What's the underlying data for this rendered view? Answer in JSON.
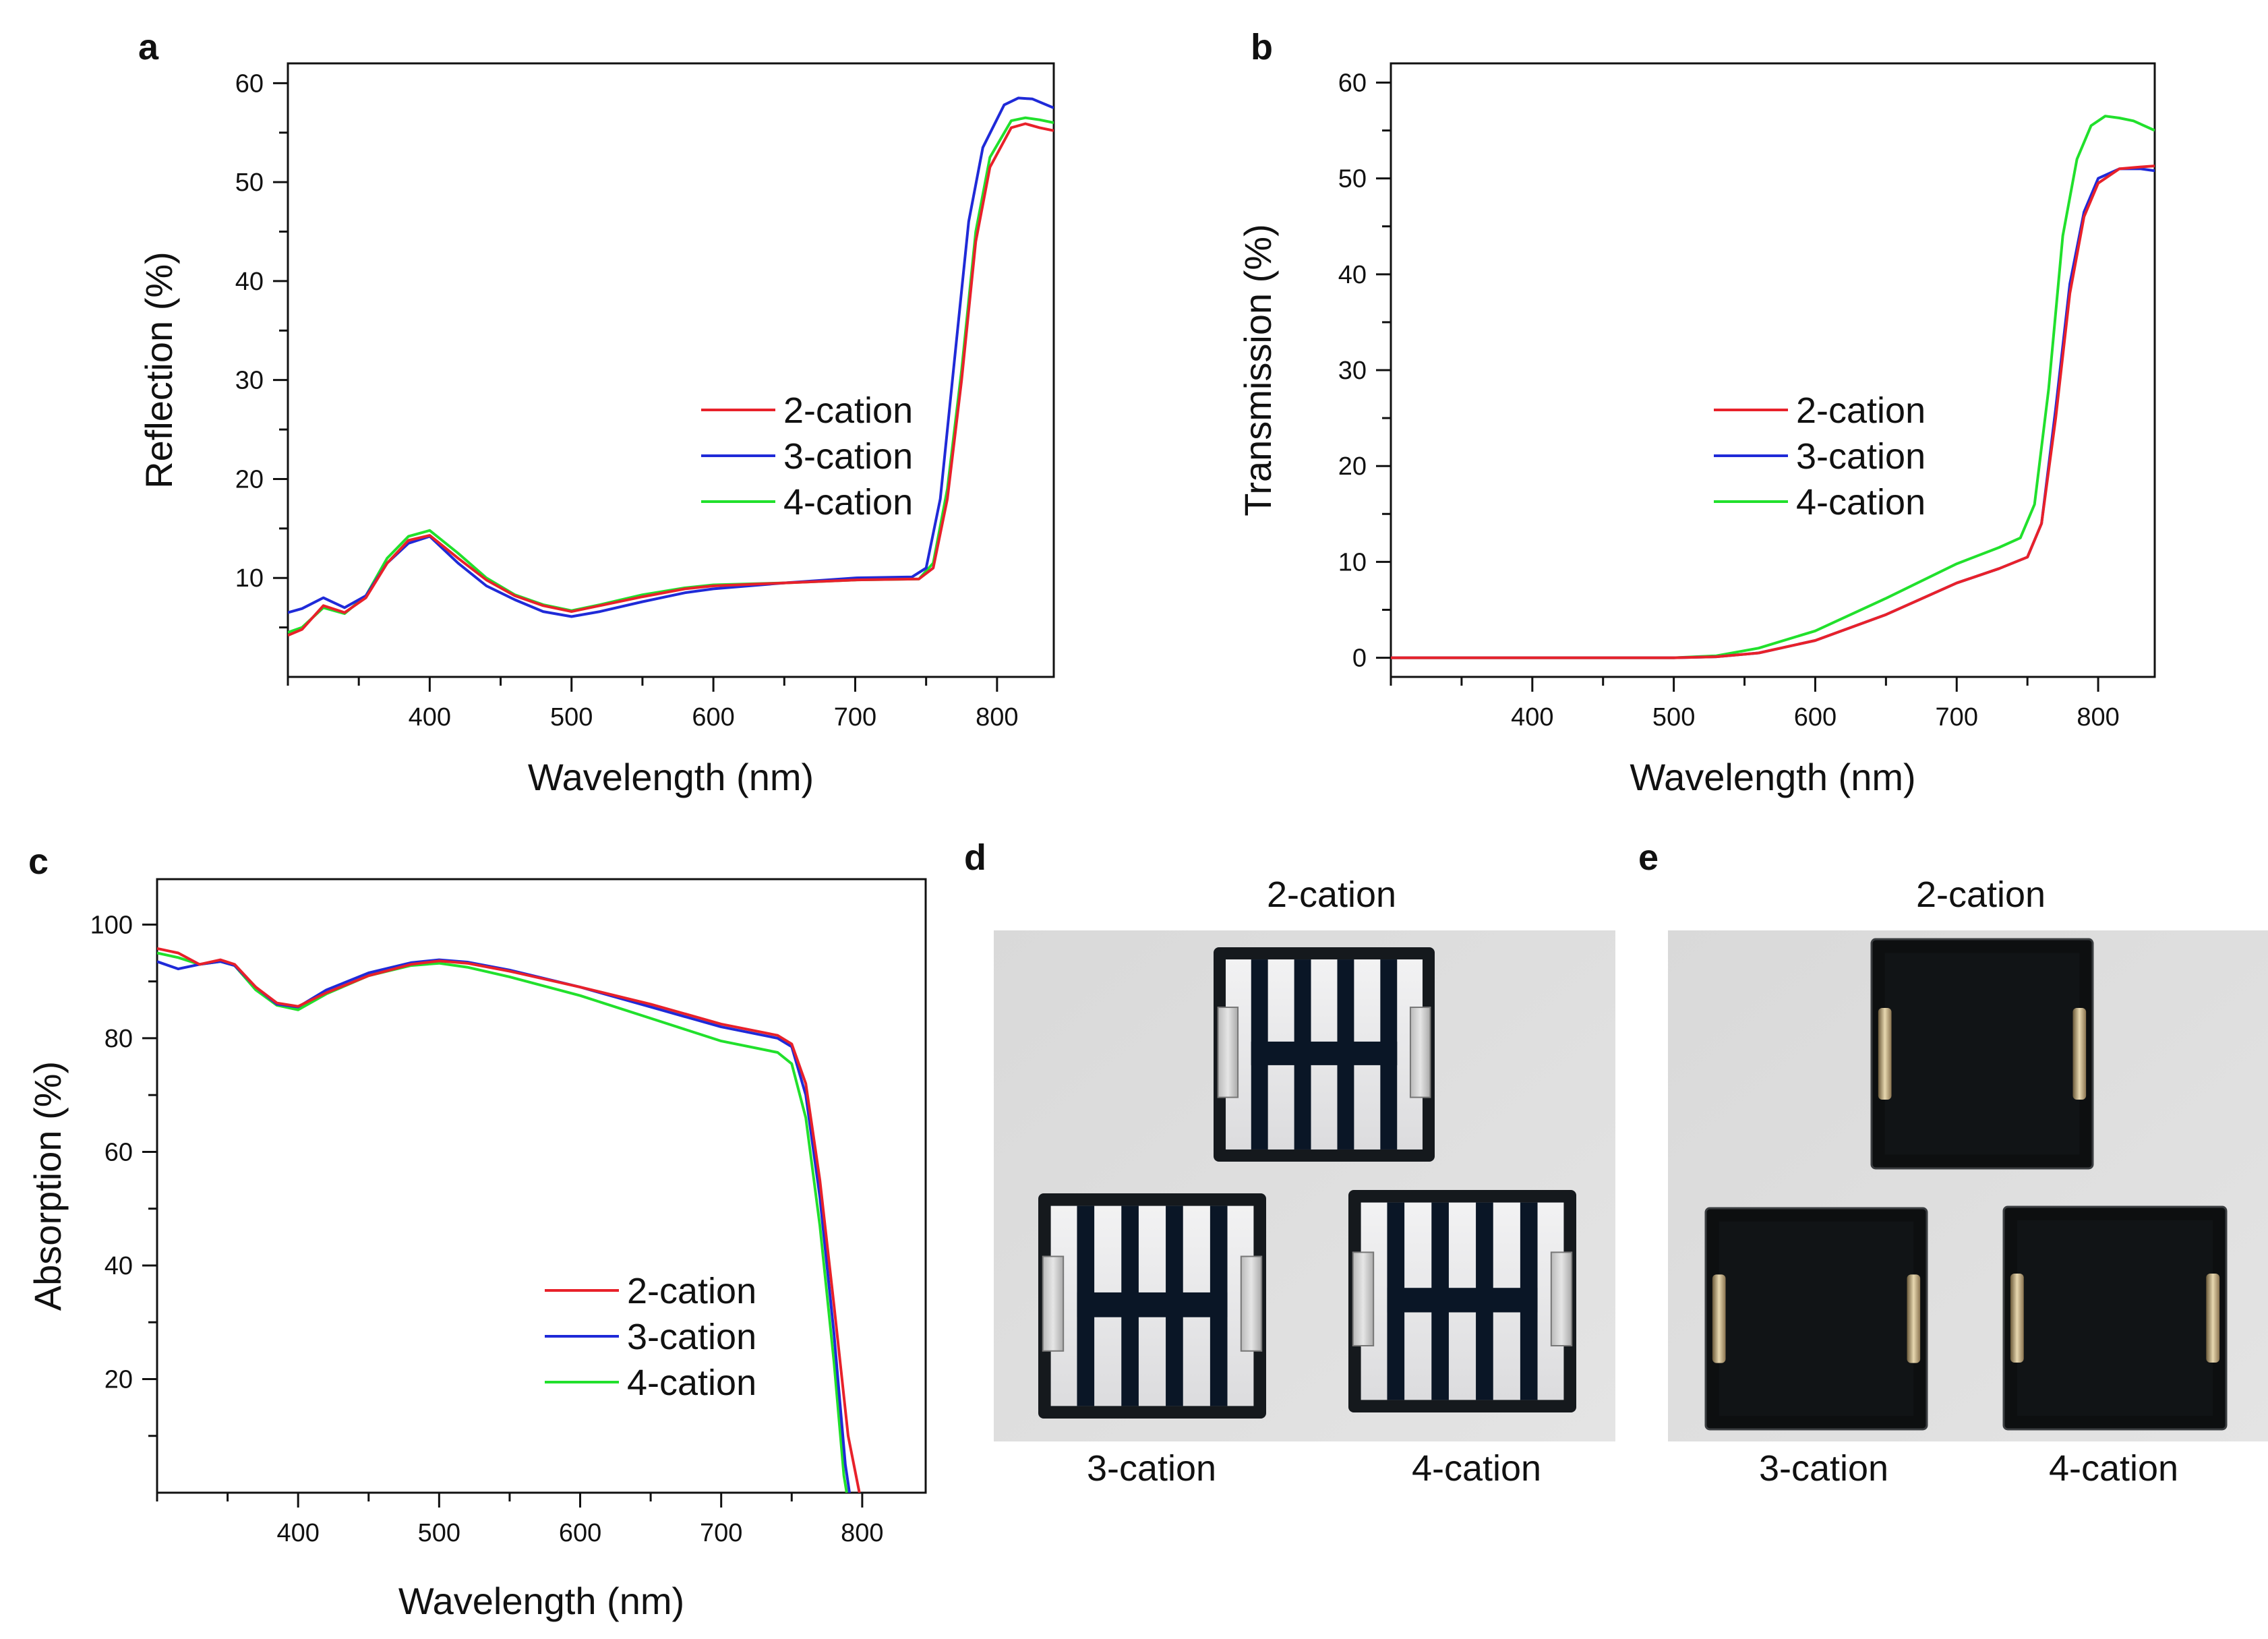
{
  "figure": {
    "colors": {
      "2-cation": "#e8212a",
      "3-cation": "#1f2ad8",
      "4-cation": "#21e02c"
    },
    "photo_bg": "#dcdcdc",
    "glass": "#e9e9ea",
    "active": "#0a1626",
    "dark_device": "#0d0f10"
  },
  "chart_data": [
    {
      "id": "a",
      "type": "line",
      "letter": "a",
      "xlabel": "Wavelength (nm)",
      "ylabel": "Reflection (%)",
      "xlim": [
        300,
        840
      ],
      "ylim": [
        0,
        62
      ],
      "xticks": [
        400,
        500,
        600,
        700,
        800
      ],
      "yticks": [
        10,
        20,
        30,
        40,
        50,
        60
      ],
      "xtick_labels": [
        "400",
        "500",
        "600",
        "700",
        "800"
      ],
      "ytick_labels": [
        "10",
        "20",
        "30",
        "40",
        "50",
        "60"
      ],
      "legend": {
        "position": "center-right",
        "entries": [
          "2-cation",
          "3-cation",
          "4-cation"
        ]
      },
      "series": [
        {
          "name": "2-cation",
          "points": [
            [
              300,
              4.2
            ],
            [
              310,
              4.8
            ],
            [
              325,
              7.2
            ],
            [
              340,
              6.5
            ],
            [
              355,
              8.0
            ],
            [
              370,
              11.5
            ],
            [
              385,
              13.8
            ],
            [
              400,
              14.3
            ],
            [
              420,
              12.0
            ],
            [
              440,
              9.8
            ],
            [
              460,
              8.2
            ],
            [
              480,
              7.2
            ],
            [
              500,
              6.6
            ],
            [
              520,
              7.2
            ],
            [
              550,
              8.1
            ],
            [
              580,
              8.9
            ],
            [
              600,
              9.2
            ],
            [
              650,
              9.5
            ],
            [
              700,
              9.8
            ],
            [
              745,
              9.9
            ],
            [
              755,
              11.0
            ],
            [
              765,
              18.0
            ],
            [
              775,
              30.0
            ],
            [
              785,
              44.0
            ],
            [
              795,
              51.5
            ],
            [
              810,
              55.5
            ],
            [
              820,
              55.9
            ],
            [
              830,
              55.5
            ],
            [
              840,
              55.2
            ]
          ]
        },
        {
          "name": "3-cation",
          "points": [
            [
              300,
              6.5
            ],
            [
              310,
              6.9
            ],
            [
              325,
              8.0
            ],
            [
              340,
              7.0
            ],
            [
              355,
              8.2
            ],
            [
              370,
              11.5
            ],
            [
              385,
              13.5
            ],
            [
              400,
              14.2
            ],
            [
              420,
              11.5
            ],
            [
              440,
              9.2
            ],
            [
              460,
              7.8
            ],
            [
              480,
              6.6
            ],
            [
              500,
              6.1
            ],
            [
              520,
              6.6
            ],
            [
              550,
              7.6
            ],
            [
              580,
              8.5
            ],
            [
              600,
              8.9
            ],
            [
              650,
              9.5
            ],
            [
              700,
              10.0
            ],
            [
              740,
              10.1
            ],
            [
              750,
              11.0
            ],
            [
              760,
              18.0
            ],
            [
              770,
              32.0
            ],
            [
              780,
              46.0
            ],
            [
              790,
              53.5
            ],
            [
              805,
              57.8
            ],
            [
              815,
              58.5
            ],
            [
              825,
              58.4
            ],
            [
              840,
              57.5
            ]
          ]
        },
        {
          "name": "4-cation",
          "points": [
            [
              300,
              4.5
            ],
            [
              310,
              5.0
            ],
            [
              325,
              7.0
            ],
            [
              340,
              6.4
            ],
            [
              355,
              8.2
            ],
            [
              370,
              12.0
            ],
            [
              385,
              14.2
            ],
            [
              400,
              14.8
            ],
            [
              420,
              12.5
            ],
            [
              440,
              10.0
            ],
            [
              460,
              8.3
            ],
            [
              480,
              7.3
            ],
            [
              500,
              6.7
            ],
            [
              520,
              7.3
            ],
            [
              550,
              8.3
            ],
            [
              580,
              9.0
            ],
            [
              600,
              9.3
            ],
            [
              650,
              9.5
            ],
            [
              700,
              9.8
            ],
            [
              745,
              9.9
            ],
            [
              755,
              11.5
            ],
            [
              765,
              19.0
            ],
            [
              775,
              31.0
            ],
            [
              785,
              45.0
            ],
            [
              795,
              52.5
            ],
            [
              810,
              56.2
            ],
            [
              820,
              56.5
            ],
            [
              830,
              56.3
            ],
            [
              840,
              56.0
            ]
          ]
        }
      ]
    },
    {
      "id": "b",
      "type": "line",
      "letter": "b",
      "xlabel": "Wavelength (nm)",
      "ylabel": "Transmission (%)",
      "xlim": [
        300,
        840
      ],
      "ylim": [
        -2,
        62
      ],
      "xticks": [
        400,
        500,
        600,
        700,
        800
      ],
      "yticks": [
        0,
        10,
        20,
        30,
        40,
        50,
        60
      ],
      "xtick_labels": [
        "400",
        "500",
        "600",
        "700",
        "800"
      ],
      "ytick_labels": [
        "0",
        "10",
        "20",
        "30",
        "40",
        "50",
        "60"
      ],
      "legend": {
        "position": "center-right",
        "entries": [
          "2-cation",
          "3-cation",
          "4-cation"
        ]
      },
      "series": [
        {
          "name": "2-cation",
          "points": [
            [
              300,
              0
            ],
            [
              500,
              0
            ],
            [
              530,
              0.1
            ],
            [
              560,
              0.5
            ],
            [
              600,
              1.8
            ],
            [
              650,
              4.5
            ],
            [
              700,
              7.8
            ],
            [
              730,
              9.3
            ],
            [
              750,
              10.5
            ],
            [
              760,
              14.0
            ],
            [
              770,
              25.0
            ],
            [
              780,
              38.0
            ],
            [
              790,
              46.0
            ],
            [
              800,
              49.5
            ],
            [
              815,
              51.0
            ],
            [
              830,
              51.2
            ],
            [
              840,
              51.3
            ]
          ]
        },
        {
          "name": "3-cation",
          "points": [
            [
              300,
              0
            ],
            [
              500,
              0
            ],
            [
              530,
              0.1
            ],
            [
              560,
              0.5
            ],
            [
              600,
              1.8
            ],
            [
              650,
              4.5
            ],
            [
              700,
              7.8
            ],
            [
              730,
              9.3
            ],
            [
              750,
              10.5
            ],
            [
              760,
              14.0
            ],
            [
              770,
              26.0
            ],
            [
              780,
              39.0
            ],
            [
              790,
              46.5
            ],
            [
              800,
              50.0
            ],
            [
              815,
              51.0
            ],
            [
              830,
              51.0
            ],
            [
              840,
              50.8
            ]
          ]
        },
        {
          "name": "4-cation",
          "points": [
            [
              300,
              0
            ],
            [
              500,
              0
            ],
            [
              530,
              0.2
            ],
            [
              560,
              1.0
            ],
            [
              600,
              2.8
            ],
            [
              650,
              6.2
            ],
            [
              700,
              9.8
            ],
            [
              730,
              11.5
            ],
            [
              745,
              12.5
            ],
            [
              755,
              16.0
            ],
            [
              765,
              28.0
            ],
            [
              775,
              44.0
            ],
            [
              785,
              52.0
            ],
            [
              795,
              55.5
            ],
            [
              805,
              56.5
            ],
            [
              815,
              56.3
            ],
            [
              825,
              56.0
            ],
            [
              840,
              55.0
            ]
          ]
        }
      ]
    },
    {
      "id": "c",
      "type": "line",
      "letter": "c",
      "xlabel": "Wavelength (nm)",
      "ylabel": "Absorption (%)",
      "xlim": [
        300,
        845
      ],
      "ylim": [
        0,
        108
      ],
      "xticks": [
        400,
        500,
        600,
        700,
        800
      ],
      "yticks": [
        20,
        40,
        60,
        80,
        100
      ],
      "xtick_labels": [
        "400",
        "500",
        "600",
        "700",
        "800"
      ],
      "ytick_labels": [
        "20",
        "40",
        "60",
        "80",
        "100"
      ],
      "legend": {
        "position": "bottom-right",
        "entries": [
          "2-cation",
          "3-cation",
          "4-cation"
        ]
      },
      "series": [
        {
          "name": "2-cation",
          "points": [
            [
              300,
              95.8
            ],
            [
              315,
              95.0
            ],
            [
              330,
              93.0
            ],
            [
              345,
              93.8
            ],
            [
              355,
              93.0
            ],
            [
              370,
              89.0
            ],
            [
              385,
              86.2
            ],
            [
              400,
              85.6
            ],
            [
              420,
              88.0
            ],
            [
              450,
              91.0
            ],
            [
              480,
              93.0
            ],
            [
              500,
              93.6
            ],
            [
              520,
              93.2
            ],
            [
              550,
              91.8
            ],
            [
              600,
              89.0
            ],
            [
              650,
              86.0
            ],
            [
              700,
              82.5
            ],
            [
              740,
              80.5
            ],
            [
              750,
              79.0
            ],
            [
              760,
              72.0
            ],
            [
              770,
              55.0
            ],
            [
              780,
              33.0
            ],
            [
              790,
              10.0
            ],
            [
              798,
              0
            ]
          ]
        },
        {
          "name": "3-cation",
          "points": [
            [
              300,
              93.5
            ],
            [
              315,
              92.2
            ],
            [
              330,
              93.0
            ],
            [
              345,
              93.5
            ],
            [
              355,
              92.8
            ],
            [
              370,
              89.0
            ],
            [
              385,
              86.0
            ],
            [
              400,
              85.5
            ],
            [
              420,
              88.5
            ],
            [
              450,
              91.5
            ],
            [
              480,
              93.3
            ],
            [
              500,
              93.8
            ],
            [
              520,
              93.4
            ],
            [
              550,
              92.0
            ],
            [
              600,
              89.0
            ],
            [
              650,
              85.5
            ],
            [
              700,
              82.0
            ],
            [
              740,
              80.0
            ],
            [
              750,
              78.5
            ],
            [
              760,
              70.0
            ],
            [
              770,
              52.0
            ],
            [
              780,
              28.0
            ],
            [
              788,
              5.0
            ],
            [
              791,
              0
            ]
          ]
        },
        {
          "name": "4-cation",
          "points": [
            [
              300,
              95.0
            ],
            [
              315,
              94.2
            ],
            [
              330,
              93.0
            ],
            [
              345,
              93.5
            ],
            [
              355,
              92.8
            ],
            [
              370,
              88.5
            ],
            [
              385,
              85.8
            ],
            [
              400,
              85.0
            ],
            [
              420,
              87.8
            ],
            [
              450,
              91.0
            ],
            [
              480,
              92.8
            ],
            [
              500,
              93.2
            ],
            [
              520,
              92.5
            ],
            [
              550,
              90.8
            ],
            [
              600,
              87.5
            ],
            [
              650,
              83.5
            ],
            [
              700,
              79.5
            ],
            [
              740,
              77.5
            ],
            [
              750,
              75.5
            ],
            [
              760,
              66.0
            ],
            [
              770,
              47.0
            ],
            [
              780,
              23.0
            ],
            [
              787,
              3.0
            ],
            [
              789,
              0
            ]
          ]
        }
      ]
    }
  ],
  "photos": [
    {
      "letter": "d",
      "top_label": "2-cation",
      "bottom_labels": [
        "3-cation",
        "4-cation"
      ],
      "variant": "semi-transparent"
    },
    {
      "letter": "e",
      "top_label": "2-cation",
      "bottom_labels": [
        "3-cation",
        "4-cation"
      ],
      "variant": "opaque"
    }
  ]
}
